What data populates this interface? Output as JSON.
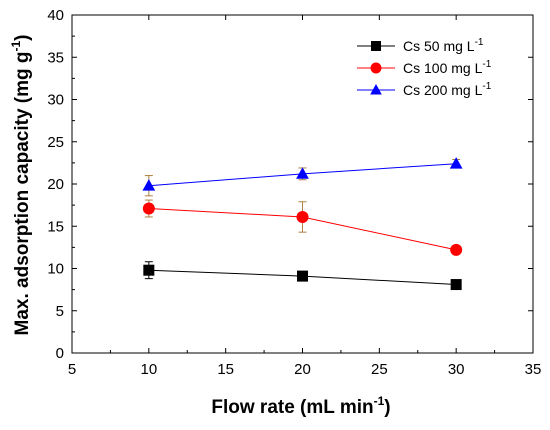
{
  "chart_data": {
    "type": "line",
    "xlabel_main": "Flow rate (mL min",
    "xlabel_sup": "-1",
    "xlabel_end": ")",
    "ylabel_main": "Max. adsorption capacity (mg g",
    "ylabel_sup": "-1",
    "ylabel_end": ")",
    "xlim": [
      5,
      35
    ],
    "ylim": [
      0,
      40
    ],
    "xticks": [
      5,
      10,
      15,
      20,
      25,
      30,
      35
    ],
    "yticks": [
      0,
      5,
      10,
      15,
      20,
      25,
      30,
      35,
      40
    ],
    "x": [
      10,
      20,
      30
    ],
    "grid": false,
    "legend_position": "top-right",
    "series": [
      {
        "name_main": "Cs 50 mg L",
        "name_sup": "-1",
        "color": "#000000",
        "marker": "square",
        "values": [
          9.8,
          9.1,
          8.1
        ],
        "errors": [
          1.0,
          0.5,
          0.4
        ]
      },
      {
        "name_main": "Cs 100 mg L",
        "name_sup": "-1",
        "color": "#ff0000",
        "marker": "circle",
        "values": [
          17.1,
          16.1,
          12.2
        ],
        "errors": [
          1.0,
          1.8,
          0.3
        ]
      },
      {
        "name_main": "Cs 200 mg L",
        "name_sup": "-1",
        "color": "#0000ff",
        "marker": "triangle",
        "values": [
          19.8,
          21.2,
          22.4
        ],
        "errors": [
          1.2,
          0.7,
          0.5
        ]
      }
    ]
  }
}
